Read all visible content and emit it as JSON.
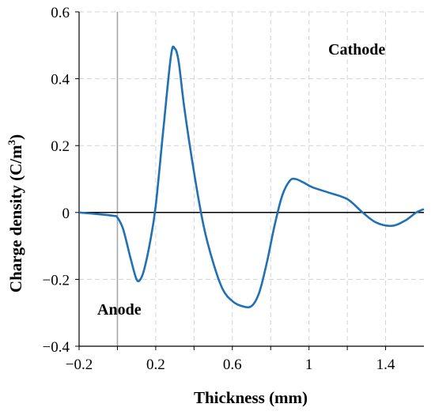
{
  "chart_data": {
    "type": "line",
    "title": "",
    "xlabel": "Thickness (mm)",
    "ylabel_main": "Charge density (C/m",
    "ylabel_sup": "3",
    "ylabel_close": ")",
    "xlim": [
      -0.2,
      1.6
    ],
    "ylim": [
      -0.4,
      0.6
    ],
    "x_ticks": [
      -0.2,
      0.2,
      0.6,
      1.0,
      1.4
    ],
    "x_tick_labels": [
      "−0.2",
      "0.2",
      "0.6",
      "1",
      "1.4"
    ],
    "y_ticks": [
      -0.4,
      -0.2,
      0,
      0.2,
      0.4,
      0.6
    ],
    "y_tick_labels": [
      "−0.4",
      "−0.2",
      "0",
      "0.2",
      "0.4",
      "0.6"
    ],
    "x_minor_grid": [
      0.0,
      0.4,
      0.8,
      1.2
    ],
    "grid": true,
    "anode_line_x": 0.0,
    "annotations": {
      "cathode": "Cathode",
      "anode": "Anode"
    },
    "series": [
      {
        "color": "#2070b4",
        "x": [
          -0.2,
          -0.1,
          -0.02,
          0.0,
          0.03,
          0.07,
          0.1,
          0.12,
          0.14,
          0.17,
          0.2,
          0.24,
          0.28,
          0.3,
          0.32,
          0.35,
          0.4,
          0.45,
          0.5,
          0.55,
          0.6,
          0.65,
          0.7,
          0.74,
          0.78,
          0.82,
          0.86,
          0.9,
          0.93,
          0.97,
          1.02,
          1.1,
          1.2,
          1.28,
          1.35,
          1.43,
          1.5,
          1.56,
          1.6
        ],
        "y": [
          0.0,
          -0.005,
          -0.01,
          -0.015,
          -0.05,
          -0.14,
          -0.2,
          -0.2,
          -0.17,
          -0.09,
          0.02,
          0.25,
          0.47,
          0.49,
          0.45,
          0.31,
          0.12,
          -0.04,
          -0.15,
          -0.23,
          -0.265,
          -0.28,
          -0.28,
          -0.24,
          -0.15,
          -0.04,
          0.05,
          0.095,
          0.1,
          0.09,
          0.075,
          0.06,
          0.04,
          0.0,
          -0.03,
          -0.04,
          -0.025,
          0.0,
          0.01
        ]
      }
    ]
  }
}
